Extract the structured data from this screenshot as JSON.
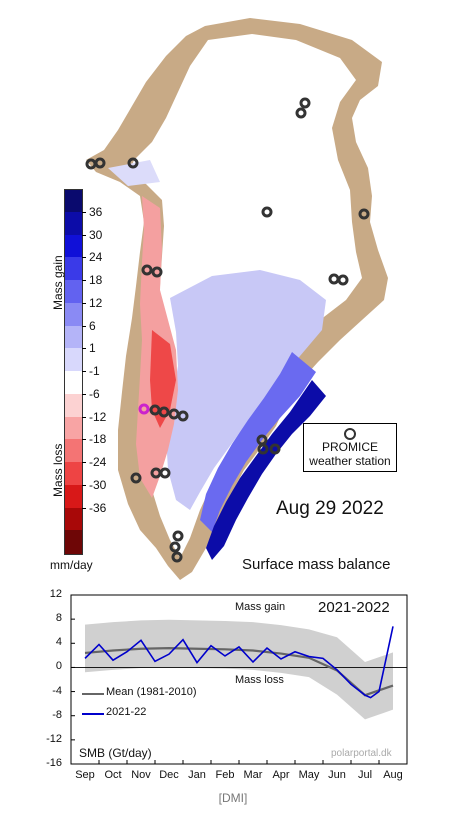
{
  "map": {
    "date": "Aug 29 2022",
    "title": "Surface mass balance",
    "unit": "mm/day",
    "gain_label": "Mass gain",
    "loss_label": "Mass loss",
    "colorbar_ticks": [
      "36",
      "30",
      "24",
      "18",
      "12",
      "6",
      "1",
      "-1",
      "-6",
      "-12",
      "-18",
      "-24",
      "-30",
      "-36"
    ],
    "colorbar_colors": [
      "#0a0a6e",
      "#0c0ca8",
      "#1010d8",
      "#3a3ae8",
      "#6262f0",
      "#8a8af4",
      "#b4b4f8",
      "#d8d8fc",
      "#ffffff",
      "#fcd2d2",
      "#f8a4a4",
      "#f47474",
      "#ee4444",
      "#d81818",
      "#a80808",
      "#6e0606"
    ],
    "legend": {
      "line1": "PROMICE",
      "line2": "weather station"
    },
    "colors": {
      "land": "#c8aa86",
      "ice_white": "#ffffff",
      "station": "#333333",
      "station_highlight": "#cc22cc"
    }
  },
  "timeseries": {
    "title": "2021-2022",
    "gain_label": "Mass gain",
    "loss_label": "Mass loss",
    "ylabel": "SMB (Gt/day)",
    "credit": "polarportal.dk",
    "legend": [
      {
        "label": "Mean (1981-2010)",
        "color": "#666666"
      },
      {
        "label": "2021-22",
        "color": "#0000cc"
      }
    ],
    "chart_data": {
      "type": "line",
      "title": "2021-2022",
      "ylabel": "SMB (Gt/day)",
      "ylim": [
        -16,
        12
      ],
      "yticks": [
        12,
        8,
        4,
        0,
        -4,
        -8,
        -12,
        -16
      ],
      "x_ticks": [
        "Sep",
        "Oct",
        "Nov",
        "Dec",
        "Jan",
        "Feb",
        "Mar",
        "Apr",
        "May",
        "Jun",
        "Jul",
        "Aug"
      ],
      "series": [
        {
          "name": "Mean (1981-2010)",
          "months": [
            1,
            2,
            3,
            4,
            5,
            6,
            7,
            8,
            9,
            10,
            11,
            12
          ],
          "values": [
            2.4,
            2.8,
            3.1,
            3.2,
            3.1,
            3.0,
            2.8,
            2.3,
            1.6,
            -0.5,
            -4.6,
            -3.0
          ]
        },
        {
          "name": "2021-22",
          "months": [
            1,
            1.5,
            2,
            2.5,
            3,
            3.5,
            4,
            4.5,
            5,
            5.5,
            6,
            6.5,
            7,
            7.5,
            8,
            8.5,
            9,
            9.5,
            10,
            10.5,
            11,
            11.2,
            11.5,
            12
          ],
          "values": [
            1.5,
            3.8,
            1.2,
            2.6,
            4.5,
            1.0,
            2.2,
            4.6,
            0.8,
            3.6,
            1.9,
            3.4,
            0.9,
            3.2,
            1.4,
            2.6,
            1.8,
            1.5,
            -0.4,
            -2.8,
            -4.6,
            -5.0,
            -4.0,
            6.8
          ]
        }
      ]
    }
  },
  "footer": "[DMI]"
}
